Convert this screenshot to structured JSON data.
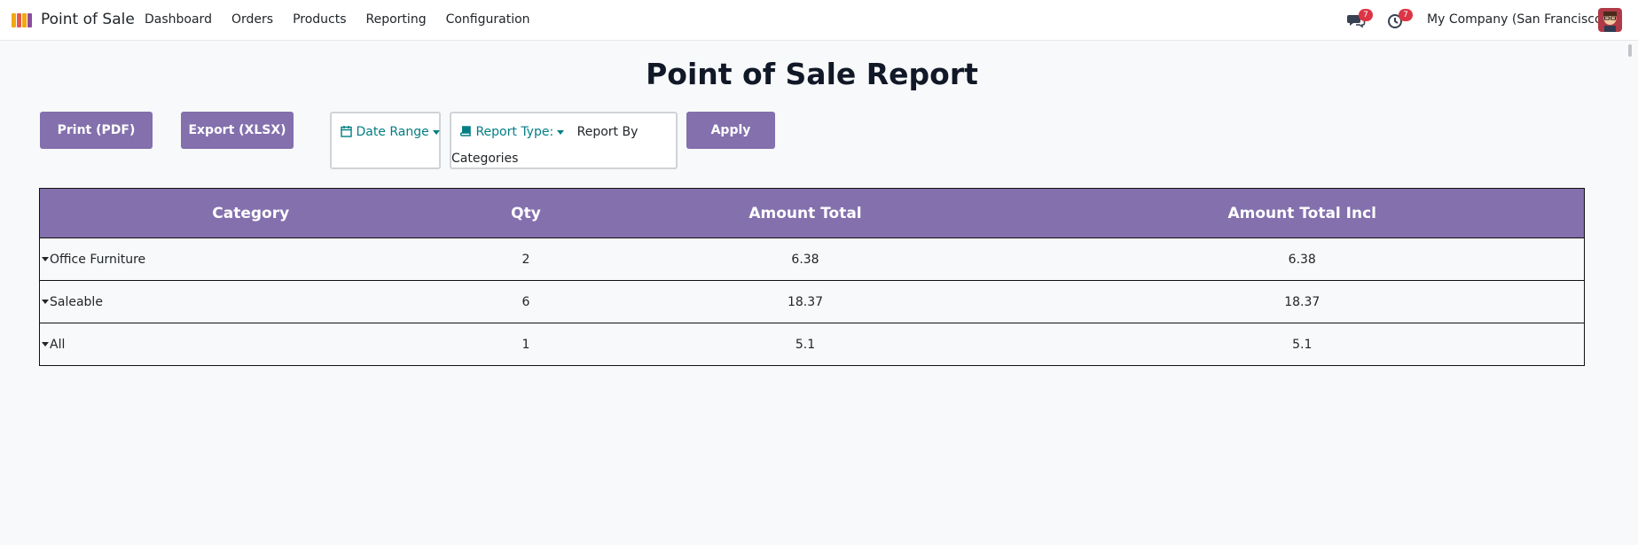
{
  "app": {
    "name": "Point of Sale",
    "menu": [
      "Dashboard",
      "Orders",
      "Products",
      "Reporting",
      "Configuration"
    ]
  },
  "systray": {
    "messages_count": "7",
    "activities_count": "7",
    "company": "My Company (San Francisco)"
  },
  "report": {
    "title": "Point of Sale Report",
    "buttons": {
      "print": "Print (PDF)",
      "export": "Export (XLSX)",
      "apply": "Apply"
    },
    "filters": {
      "date_range_label": "Date Range",
      "report_type_label": "Report Type:",
      "report_type_value_line1": "Report By",
      "report_type_value_line2": "Categories"
    },
    "table": {
      "headers": [
        "Category",
        "Qty",
        "Amount Total",
        "Amount Total Incl"
      ],
      "rows": [
        {
          "category": "Office Furniture",
          "qty": "2",
          "amount_total": "6.38",
          "amount_total_incl": "6.38"
        },
        {
          "category": "Saleable",
          "qty": "6",
          "amount_total": "18.37",
          "amount_total_incl": "18.37"
        },
        {
          "category": "All",
          "qty": "1",
          "amount_total": "5.1",
          "amount_total_incl": "5.1"
        }
      ]
    }
  },
  "colors": {
    "primary": "#8370ad",
    "teal": "#017e84",
    "badge": "#dc3545"
  },
  "icons": {
    "app": "pos-store-icon",
    "messages": "chat-bubbles-icon",
    "activities": "clock-icon",
    "date_range": "calendar-icon",
    "report_type": "book-icon",
    "row_toggle": "caret-down-icon"
  }
}
